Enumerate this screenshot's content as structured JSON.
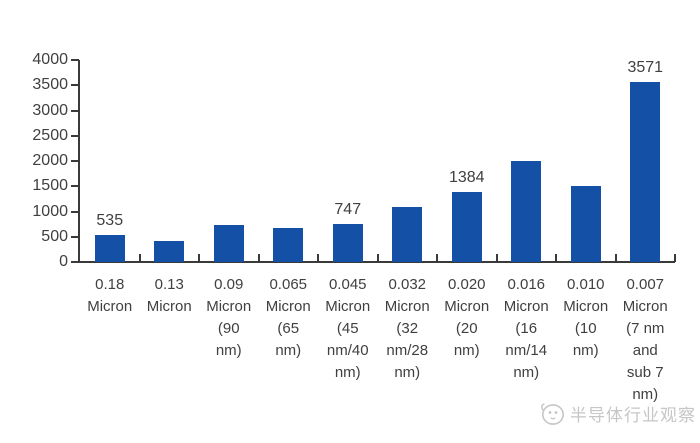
{
  "chart_data": {
    "type": "bar",
    "title": "",
    "xlabel": "",
    "ylabel": "",
    "categories": [
      "0.18 Micron",
      "0.13 Micron",
      "0.09 Micron (90 nm)",
      "0.065 Micron (65 nm)",
      "0.045 Micron (45 nm/40 nm)",
      "0.032 Micron (32 nm/28 nm)",
      "0.020 Micron (20 nm)",
      "0.016 Micron (16 nm/14 nm)",
      "0.010 Micron (10 nm)",
      "0.007 Micron (7 nm and sub 7 nm)"
    ],
    "category_lines": [
      [
        "0.18",
        "Micron"
      ],
      [
        "0.13",
        "Micron"
      ],
      [
        "0.09",
        "Micron",
        "(90",
        "nm)"
      ],
      [
        "0.065",
        "Micron",
        "(65",
        "nm)"
      ],
      [
        "0.045",
        "Micron",
        "(45",
        "nm/40",
        "nm)"
      ],
      [
        "0.032",
        "Micron",
        "(32",
        "nm/28",
        "nm)"
      ],
      [
        "0.020",
        "Micron",
        "(20",
        "nm)"
      ],
      [
        "0.016",
        "Micron",
        "(16",
        "nm/14",
        "nm)"
      ],
      [
        "0.010",
        "Micron",
        "(10",
        "nm)"
      ],
      [
        "0.007",
        "Micron",
        "(7 nm",
        "and",
        "sub 7",
        "nm)"
      ]
    ],
    "values": [
      535,
      420,
      730,
      670,
      747,
      1090,
      1384,
      2000,
      1500,
      3571
    ],
    "data_labels": [
      "535",
      "",
      "",
      "",
      "747",
      "",
      "1384",
      "",
      "",
      "3571"
    ],
    "yticks": [
      0,
      500,
      1000,
      1500,
      2000,
      2500,
      3000,
      3500,
      4000
    ],
    "ylim": [
      0,
      4000
    ],
    "grid": false,
    "legend_position": "none",
    "bar_color": "#1450a5",
    "axis_color": "#3a3a3a",
    "text_color": "#404040"
  },
  "watermark": {
    "text": "半导体行业观察",
    "color": "#c6c6c6"
  }
}
